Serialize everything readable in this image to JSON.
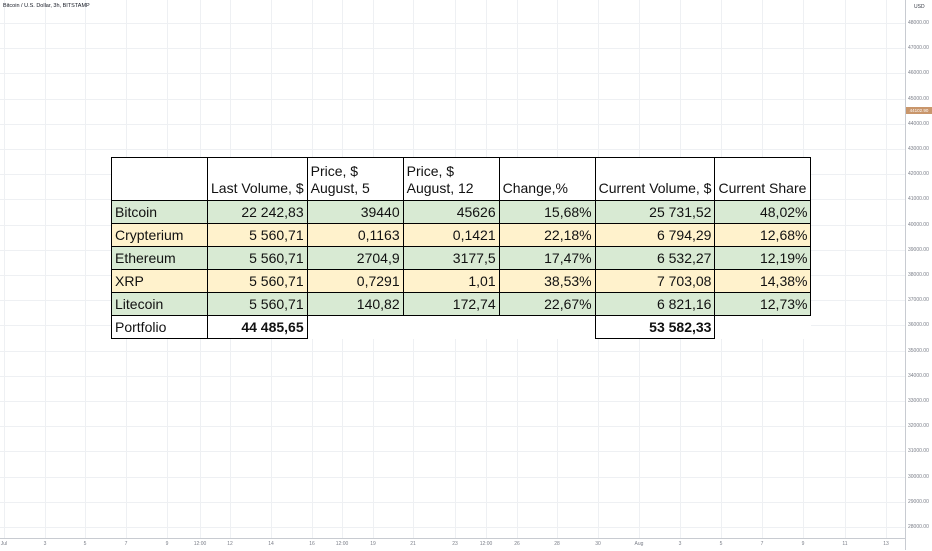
{
  "chart": {
    "title": "Bitcoin / U.S. Dollar, 3h, BITSTAMP",
    "currency": "USD",
    "current_price": "44102.90"
  },
  "price_axis": [
    "48000.00",
    "47000.00",
    "46000.00",
    "45000.00",
    "44000.00",
    "43000.00",
    "42000.00",
    "41000.00",
    "40000.00",
    "39000.00",
    "38000.00",
    "37000.00",
    "36000.00",
    "35000.00",
    "34000.00",
    "33000.00",
    "32000.00",
    "31000.00",
    "30000.00",
    "29000.00",
    "28000.00"
  ],
  "time_axis": [
    "Jul",
    "3",
    "5",
    "7",
    "9",
    "12:00",
    "12",
    "14",
    "16",
    "12:00",
    "19",
    "21",
    "23",
    "12:00",
    "26",
    "28",
    "30",
    "Aug",
    "3",
    "5",
    "7",
    "9",
    "11",
    "13"
  ],
  "table": {
    "headers": [
      "",
      "Last Volume, $",
      "Price, $\nAugust, 5",
      "Price, $\nAugust, 12",
      "Change,%",
      "Current Volume, $",
      "Current Share"
    ],
    "rows": [
      {
        "name": "Bitcoin",
        "last_volume": "22 242,83",
        "price_aug5": "39440",
        "price_aug12": "45626",
        "change": "15,68%",
        "current_volume": "25 731,52",
        "share": "48,02%"
      },
      {
        "name": "Crypterium",
        "last_volume": "5 560,71",
        "price_aug5": "0,1163",
        "price_aug12": "0,1421",
        "change": "22,18%",
        "current_volume": "6 794,29",
        "share": "12,68%"
      },
      {
        "name": "Ethereum",
        "last_volume": "5 560,71",
        "price_aug5": "2704,9",
        "price_aug12": "3177,5",
        "change": "17,47%",
        "current_volume": "6 532,27",
        "share": "12,19%"
      },
      {
        "name": "XRP",
        "last_volume": "5 560,71",
        "price_aug5": "0,7291",
        "price_aug12": "1,01",
        "change": "38,53%",
        "current_volume": "7 703,08",
        "share": "14,38%"
      },
      {
        "name": "Litecoin",
        "last_volume": "5 560,71",
        "price_aug5": "140,82",
        "price_aug12": "172,74",
        "change": "22,67%",
        "current_volume": "6 821,16",
        "share": "12,73%"
      }
    ],
    "total": {
      "label": "Portfolio",
      "last_volume": "44 485,65",
      "current_volume": "53 582,33"
    }
  }
}
